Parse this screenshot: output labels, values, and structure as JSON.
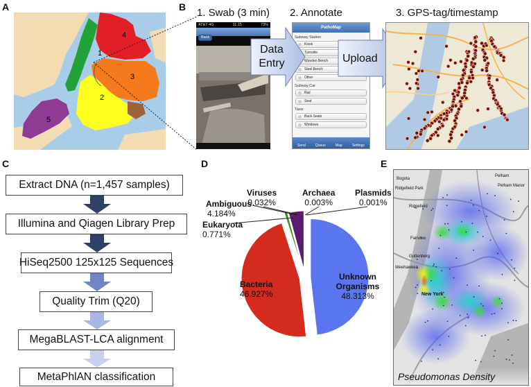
{
  "panels": {
    "a": "A",
    "b": "B",
    "c": "C",
    "d": "D",
    "e": "E"
  },
  "map_a": {
    "region_numbers": [
      "1",
      "2",
      "3",
      "4",
      "5"
    ],
    "colors": {
      "manhattan": "#23a23a",
      "brooklyn": "#ffff1e",
      "queens": "#f47a1c",
      "bronx": "#e21f26",
      "staten_island": "#8e3b95",
      "water": "#a8cde8",
      "land": "#f3dcb4"
    }
  },
  "workflow_b": {
    "step1": "1. Swab (3 min)",
    "step2": "2.  Annotate",
    "step3": "3.  GPS-tag/timestamp",
    "arrow1": "Data Entry",
    "arrow2": "Upload",
    "phone_photo": {
      "status_left": "AT&T  4G",
      "status_time": "11:15",
      "status_right": "73%",
      "back_button": "Back"
    },
    "phone_app": {
      "app_title": "PathoMap",
      "section1": "Subway Station",
      "section1_items": [
        "Kiosk",
        "Turnstile",
        "Wooden Bench",
        "Steel Bench",
        "Other"
      ],
      "section2": "Subway Car",
      "section2_items": [
        "Rail",
        "Seat"
      ],
      "section3": "Taxis",
      "section3_items": [
        "Back Seats",
        "Windows"
      ],
      "tabs": [
        "Send",
        "Queue",
        "Map",
        "Settings"
      ]
    }
  },
  "pipeline_c": {
    "steps": [
      "Extract DNA (n=1,457 samples)",
      "Illumina and Qiagen Library Prep",
      "HiSeq2500 125x125 Sequences",
      "Quality Trim (Q20)",
      "MegaBLAST-LCA alignment",
      "MetaPhlAN classification"
    ],
    "arrow_colors": [
      "#2f4069",
      "#2f4069",
      "#6f85c8",
      "#a7b7e2",
      "#c5d1ee"
    ]
  },
  "chart_data": {
    "type": "pie",
    "slices": [
      {
        "label": "Unknown Organisms",
        "value": 48.313,
        "text": "48.313%",
        "color": "#5976f0"
      },
      {
        "label": "Bacteria",
        "value": 46.927,
        "text": "46.927%",
        "color": "#d42b1e"
      },
      {
        "label": "Eukaryota",
        "value": 0.771,
        "text": "0.771%",
        "color": "#3d8a1e"
      },
      {
        "label": "Ambiguous",
        "value": 4.184,
        "text": "4.184%",
        "color": "#5e1a70"
      },
      {
        "label": "Viruses",
        "value": 0.032,
        "text": "0.032%",
        "color": "#8ab63c"
      },
      {
        "label": "Archaea",
        "value": 0.003,
        "text": "0.003%",
        "color": "#4a2d7a"
      },
      {
        "label": "Plasmids",
        "value": 0.001,
        "text": "0.001%",
        "color": "#2b7ec9"
      }
    ]
  },
  "density_e": {
    "caption": "Pseudomonas Density",
    "place_labels": [
      "Pelham",
      "Pelham Manor",
      "Bogota",
      "Ridgefield Park",
      "Ridgefield",
      "Fairview",
      "Guttenberg",
      "Weehawken",
      "New York"
    ]
  }
}
